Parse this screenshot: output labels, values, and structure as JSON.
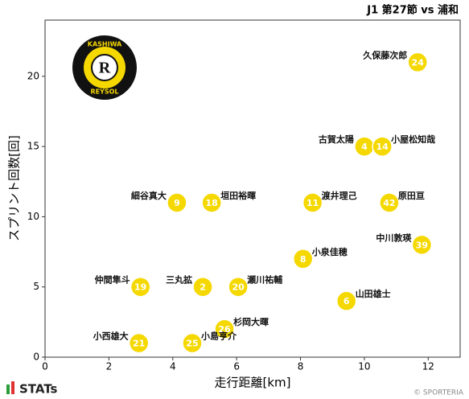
{
  "chart_data": {
    "type": "scatter",
    "title": "J1 第27節 vs 浦和",
    "xlabel": "走行距離[km]",
    "ylabel": "スプリント回数[回]",
    "x": [
      11.67,
      10.0,
      10.56,
      4.13,
      5.22,
      8.38,
      10.78,
      11.8,
      8.08,
      2.99,
      4.94,
      6.05,
      9.44,
      5.62,
      2.94,
      4.61
    ],
    "values": [
      21,
      15,
      15,
      11,
      11,
      11,
      11,
      8,
      7,
      5,
      5,
      5,
      4,
      2,
      1,
      1
    ],
    "labels": [
      "久保藤次郎",
      "古賀太陽",
      "小屋松知哉",
      "細谷真大",
      "垣田裕暉",
      "渡井理己",
      "原田亘",
      "中川敦瑛",
      "小泉佳穂",
      "仲間隼斗",
      "三丸拡",
      "瀬川祐輔",
      "山田雄士",
      "杉岡大暉",
      "小西雄大",
      "小島亨介"
    ],
    "numbers": [
      "24",
      "4",
      "14",
      "9",
      "18",
      "11",
      "42",
      "39",
      "8",
      "19",
      "2",
      "20",
      "6",
      "26",
      "21",
      "25"
    ],
    "color": "#f5d800",
    "xlim": [
      0,
      13
    ],
    "xticks": [
      0,
      2,
      4,
      6,
      8,
      10,
      12
    ],
    "ylim": [
      0,
      24
    ],
    "yticks": [
      0,
      5,
      10,
      15,
      20
    ],
    "logo": {
      "top": "KASHIWA",
      "bottom": "REYSOL",
      "letter": "R"
    },
    "brand": "STATs",
    "credit": "© SPORTERIA"
  }
}
